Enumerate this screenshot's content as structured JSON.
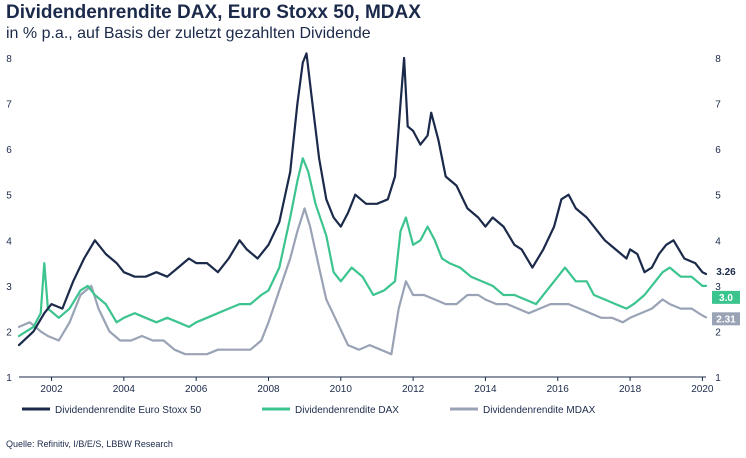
{
  "header": {
    "title": "Dividendenrendite DAX, Euro Stoxx 50, MDAX",
    "subtitle": "in % p.a., auf Basis der zuletzt gezahlten Dividende"
  },
  "footer": {
    "source": "Quelle: Refinitiv, I/B/E/S, LBBW Research"
  },
  "colors": {
    "eurostoxx": "#1b2a4a",
    "dax": "#3cc48f",
    "mdax": "#9aa3b5",
    "axis": "#1b2a4a"
  },
  "chart_data": {
    "type": "line",
    "title": "Dividendenrendite DAX, Euro Stoxx 50, MDAX",
    "subtitle": "in % p.a., auf Basis der zuletzt gezahlten Dividende",
    "xlabel": "",
    "ylabel": "",
    "xlim": [
      2001.1,
      2020.1
    ],
    "ylim": [
      1,
      8
    ],
    "x_ticks": [
      2002,
      2004,
      2006,
      2008,
      2010,
      2012,
      2014,
      2016,
      2018,
      2020
    ],
    "x_tick_labels": [
      "2002",
      "2004",
      "2006",
      "2008",
      "2010",
      "2012",
      "2014",
      "2016",
      "2018",
      "2020"
    ],
    "y_ticks": [
      1,
      2,
      3,
      4,
      5,
      6,
      7,
      8
    ],
    "y_tick_labels": [
      "1",
      "2",
      "3",
      "4",
      "5",
      "6",
      "7",
      "8"
    ],
    "legend_position": "bottom",
    "series": [
      {
        "name": "Dividendenrendite Euro Stoxx 50",
        "end_label": "3.26",
        "points": [
          [
            2001.1,
            1.7
          ],
          [
            2001.5,
            2.0
          ],
          [
            2001.8,
            2.4
          ],
          [
            2002.0,
            2.6
          ],
          [
            2002.3,
            2.5
          ],
          [
            2002.6,
            3.1
          ],
          [
            2002.9,
            3.6
          ],
          [
            2003.2,
            4.0
          ],
          [
            2003.5,
            3.7
          ],
          [
            2003.8,
            3.5
          ],
          [
            2004.0,
            3.3
          ],
          [
            2004.3,
            3.2
          ],
          [
            2004.6,
            3.2
          ],
          [
            2004.9,
            3.3
          ],
          [
            2005.2,
            3.2
          ],
          [
            2005.5,
            3.4
          ],
          [
            2005.8,
            3.6
          ],
          [
            2006.0,
            3.5
          ],
          [
            2006.3,
            3.5
          ],
          [
            2006.6,
            3.3
          ],
          [
            2006.9,
            3.6
          ],
          [
            2007.2,
            4.0
          ],
          [
            2007.4,
            3.8
          ],
          [
            2007.7,
            3.6
          ],
          [
            2008.0,
            3.9
          ],
          [
            2008.3,
            4.4
          ],
          [
            2008.6,
            5.5
          ],
          [
            2008.8,
            7.0
          ],
          [
            2008.95,
            7.9
          ],
          [
            2009.05,
            8.1
          ],
          [
            2009.2,
            7.1
          ],
          [
            2009.4,
            5.8
          ],
          [
            2009.6,
            4.9
          ],
          [
            2009.8,
            4.5
          ],
          [
            2010.0,
            4.3
          ],
          [
            2010.2,
            4.6
          ],
          [
            2010.4,
            5.0
          ],
          [
            2010.7,
            4.8
          ],
          [
            2011.0,
            4.8
          ],
          [
            2011.3,
            4.9
          ],
          [
            2011.5,
            5.4
          ],
          [
            2011.65,
            7.0
          ],
          [
            2011.75,
            8.0
          ],
          [
            2011.85,
            6.5
          ],
          [
            2012.0,
            6.4
          ],
          [
            2012.2,
            6.1
          ],
          [
            2012.4,
            6.3
          ],
          [
            2012.5,
            6.8
          ],
          [
            2012.7,
            6.2
          ],
          [
            2012.9,
            5.4
          ],
          [
            2013.2,
            5.2
          ],
          [
            2013.5,
            4.7
          ],
          [
            2013.8,
            4.5
          ],
          [
            2014.0,
            4.3
          ],
          [
            2014.2,
            4.5
          ],
          [
            2014.5,
            4.3
          ],
          [
            2014.8,
            3.9
          ],
          [
            2015.0,
            3.8
          ],
          [
            2015.3,
            3.4
          ],
          [
            2015.6,
            3.8
          ],
          [
            2015.9,
            4.3
          ],
          [
            2016.1,
            4.9
          ],
          [
            2016.3,
            5.0
          ],
          [
            2016.5,
            4.7
          ],
          [
            2016.8,
            4.5
          ],
          [
            2017.0,
            4.3
          ],
          [
            2017.3,
            4.0
          ],
          [
            2017.6,
            3.8
          ],
          [
            2017.9,
            3.6
          ],
          [
            2018.0,
            3.8
          ],
          [
            2018.2,
            3.7
          ],
          [
            2018.4,
            3.3
          ],
          [
            2018.6,
            3.4
          ],
          [
            2018.8,
            3.7
          ],
          [
            2019.0,
            3.9
          ],
          [
            2019.2,
            4.0
          ],
          [
            2019.5,
            3.6
          ],
          [
            2019.8,
            3.5
          ],
          [
            2020.0,
            3.3
          ],
          [
            2020.1,
            3.26
          ]
        ]
      },
      {
        "name": "Dividendenrendite DAX",
        "end_label": "3.0",
        "points": [
          [
            2001.1,
            1.9
          ],
          [
            2001.3,
            2.0
          ],
          [
            2001.5,
            2.1
          ],
          [
            2001.7,
            2.4
          ],
          [
            2001.8,
            3.5
          ],
          [
            2001.9,
            2.5
          ],
          [
            2002.2,
            2.3
          ],
          [
            2002.5,
            2.5
          ],
          [
            2002.8,
            2.9
          ],
          [
            2003.0,
            3.0
          ],
          [
            2003.2,
            2.8
          ],
          [
            2003.5,
            2.6
          ],
          [
            2003.8,
            2.2
          ],
          [
            2004.0,
            2.3
          ],
          [
            2004.3,
            2.4
          ],
          [
            2004.6,
            2.3
          ],
          [
            2004.9,
            2.2
          ],
          [
            2005.2,
            2.3
          ],
          [
            2005.5,
            2.2
          ],
          [
            2005.8,
            2.1
          ],
          [
            2006.0,
            2.2
          ],
          [
            2006.3,
            2.3
          ],
          [
            2006.6,
            2.4
          ],
          [
            2006.9,
            2.5
          ],
          [
            2007.2,
            2.6
          ],
          [
            2007.5,
            2.6
          ],
          [
            2007.8,
            2.8
          ],
          [
            2008.0,
            2.9
          ],
          [
            2008.3,
            3.4
          ],
          [
            2008.6,
            4.5
          ],
          [
            2008.8,
            5.3
          ],
          [
            2008.95,
            5.8
          ],
          [
            2009.1,
            5.5
          ],
          [
            2009.3,
            4.8
          ],
          [
            2009.6,
            4.1
          ],
          [
            2009.8,
            3.3
          ],
          [
            2010.0,
            3.1
          ],
          [
            2010.3,
            3.4
          ],
          [
            2010.6,
            3.2
          ],
          [
            2010.9,
            2.8
          ],
          [
            2011.2,
            2.9
          ],
          [
            2011.5,
            3.1
          ],
          [
            2011.65,
            4.2
          ],
          [
            2011.8,
            4.5
          ],
          [
            2012.0,
            3.9
          ],
          [
            2012.2,
            4.0
          ],
          [
            2012.4,
            4.3
          ],
          [
            2012.6,
            4.0
          ],
          [
            2012.8,
            3.6
          ],
          [
            2013.0,
            3.5
          ],
          [
            2013.3,
            3.4
          ],
          [
            2013.6,
            3.2
          ],
          [
            2013.9,
            3.1
          ],
          [
            2014.2,
            3.0
          ],
          [
            2014.5,
            2.8
          ],
          [
            2014.8,
            2.8
          ],
          [
            2015.1,
            2.7
          ],
          [
            2015.4,
            2.6
          ],
          [
            2015.7,
            2.9
          ],
          [
            2016.0,
            3.2
          ],
          [
            2016.2,
            3.4
          ],
          [
            2016.5,
            3.1
          ],
          [
            2016.8,
            3.1
          ],
          [
            2017.0,
            2.8
          ],
          [
            2017.3,
            2.7
          ],
          [
            2017.6,
            2.6
          ],
          [
            2017.9,
            2.5
          ],
          [
            2018.1,
            2.6
          ],
          [
            2018.4,
            2.8
          ],
          [
            2018.7,
            3.1
          ],
          [
            2018.9,
            3.3
          ],
          [
            2019.1,
            3.4
          ],
          [
            2019.4,
            3.2
          ],
          [
            2019.7,
            3.2
          ],
          [
            2020.0,
            3.0
          ],
          [
            2020.1,
            3.0
          ]
        ]
      },
      {
        "name": "Dividendenrendite MDAX",
        "end_label": "2.31",
        "points": [
          [
            2001.1,
            2.1
          ],
          [
            2001.4,
            2.2
          ],
          [
            2001.7,
            2.0
          ],
          [
            2001.9,
            1.9
          ],
          [
            2002.2,
            1.8
          ],
          [
            2002.5,
            2.2
          ],
          [
            2002.8,
            2.8
          ],
          [
            2003.1,
            3.0
          ],
          [
            2003.3,
            2.5
          ],
          [
            2003.6,
            2.0
          ],
          [
            2003.9,
            1.8
          ],
          [
            2004.2,
            1.8
          ],
          [
            2004.5,
            1.9
          ],
          [
            2004.8,
            1.8
          ],
          [
            2005.1,
            1.8
          ],
          [
            2005.4,
            1.6
          ],
          [
            2005.7,
            1.5
          ],
          [
            2006.0,
            1.5
          ],
          [
            2006.3,
            1.5
          ],
          [
            2006.6,
            1.6
          ],
          [
            2006.9,
            1.6
          ],
          [
            2007.2,
            1.6
          ],
          [
            2007.5,
            1.6
          ],
          [
            2007.8,
            1.8
          ],
          [
            2008.0,
            2.2
          ],
          [
            2008.3,
            2.9
          ],
          [
            2008.6,
            3.6
          ],
          [
            2008.8,
            4.2
          ],
          [
            2009.0,
            4.7
          ],
          [
            2009.15,
            4.3
          ],
          [
            2009.4,
            3.4
          ],
          [
            2009.6,
            2.7
          ],
          [
            2009.9,
            2.2
          ],
          [
            2010.2,
            1.7
          ],
          [
            2010.5,
            1.6
          ],
          [
            2010.8,
            1.7
          ],
          [
            2011.1,
            1.6
          ],
          [
            2011.4,
            1.5
          ],
          [
            2011.6,
            2.5
          ],
          [
            2011.8,
            3.1
          ],
          [
            2012.0,
            2.8
          ],
          [
            2012.3,
            2.8
          ],
          [
            2012.6,
            2.7
          ],
          [
            2012.9,
            2.6
          ],
          [
            2013.2,
            2.6
          ],
          [
            2013.5,
            2.8
          ],
          [
            2013.8,
            2.8
          ],
          [
            2014.0,
            2.7
          ],
          [
            2014.3,
            2.6
          ],
          [
            2014.6,
            2.6
          ],
          [
            2014.9,
            2.5
          ],
          [
            2015.2,
            2.4
          ],
          [
            2015.5,
            2.5
          ],
          [
            2015.8,
            2.6
          ],
          [
            2016.0,
            2.6
          ],
          [
            2016.3,
            2.6
          ],
          [
            2016.6,
            2.5
          ],
          [
            2016.9,
            2.4
          ],
          [
            2017.2,
            2.3
          ],
          [
            2017.5,
            2.3
          ],
          [
            2017.8,
            2.2
          ],
          [
            2018.0,
            2.3
          ],
          [
            2018.3,
            2.4
          ],
          [
            2018.6,
            2.5
          ],
          [
            2018.9,
            2.7
          ],
          [
            2019.1,
            2.6
          ],
          [
            2019.4,
            2.5
          ],
          [
            2019.7,
            2.5
          ],
          [
            2020.0,
            2.35
          ],
          [
            2020.1,
            2.31
          ]
        ]
      }
    ]
  }
}
